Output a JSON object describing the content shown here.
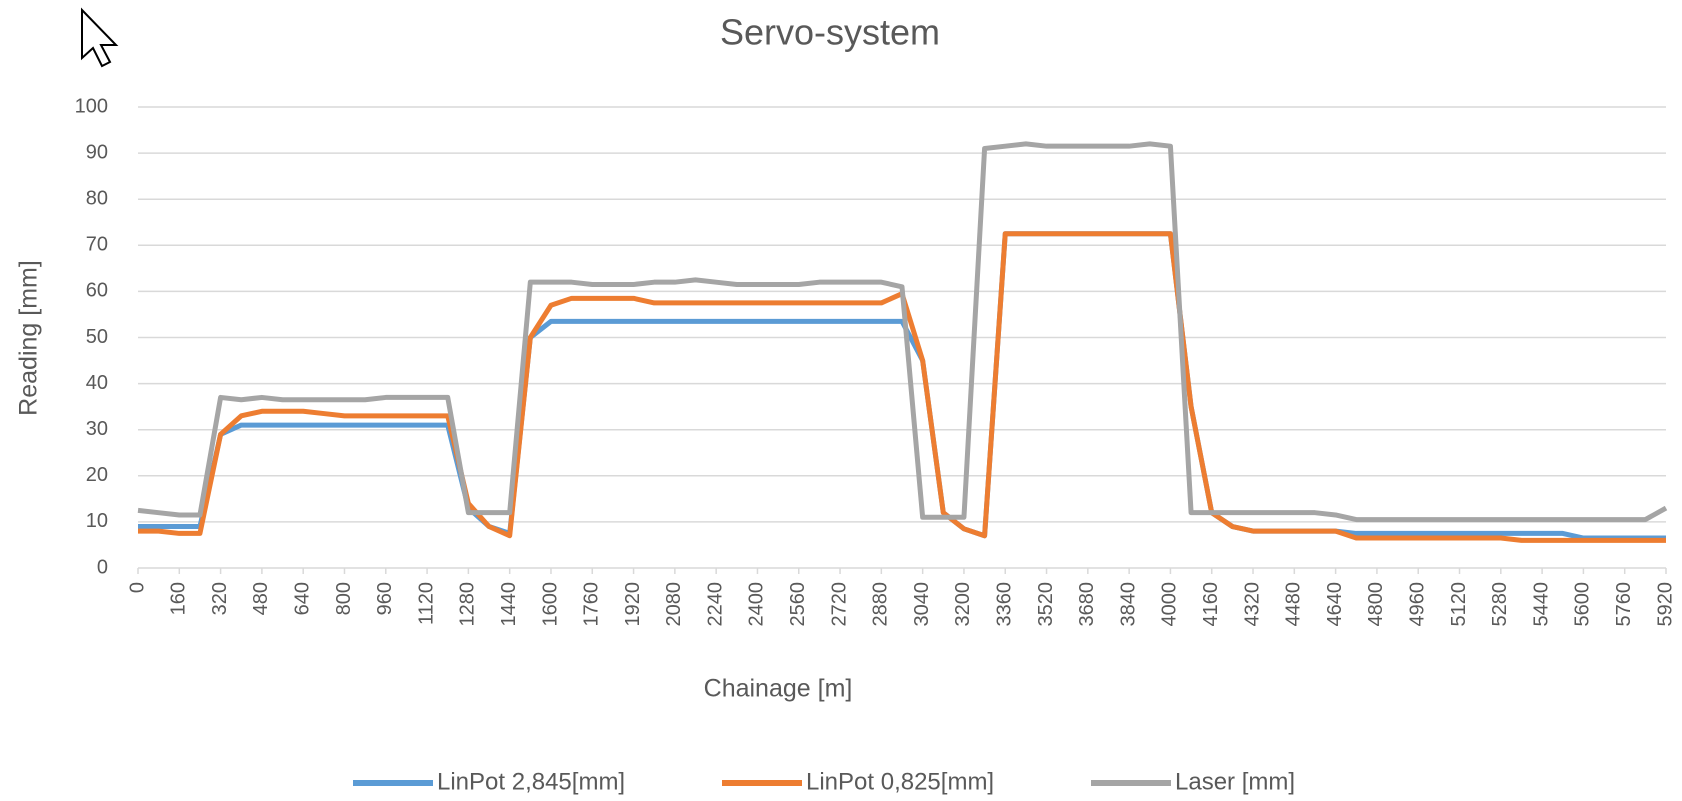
{
  "chart_data": {
    "type": "line",
    "title": "Servo-system",
    "x_label": "Chainage [m]",
    "y_label": "Reading [mm]",
    "x": [
      0,
      80,
      160,
      240,
      320,
      400,
      480,
      560,
      640,
      720,
      800,
      880,
      960,
      1040,
      1120,
      1200,
      1280,
      1360,
      1440,
      1520,
      1600,
      1680,
      1760,
      1840,
      1920,
      2000,
      2080,
      2160,
      2240,
      2320,
      2400,
      2480,
      2560,
      2640,
      2720,
      2800,
      2880,
      2960,
      3040,
      3120,
      3200,
      3280,
      3360,
      3440,
      3520,
      3600,
      3680,
      3760,
      3840,
      3920,
      4000,
      4080,
      4160,
      4240,
      4320,
      4400,
      4480,
      4560,
      4640,
      4720,
      4800,
      4880,
      4960,
      5040,
      5120,
      5200,
      5280,
      5360,
      5440,
      5520,
      5600,
      5680,
      5760,
      5840,
      5920
    ],
    "series": [
      {
        "name": "LinPot 2,845[mm]",
        "color": "#5b9bd5",
        "values": [
          9,
          9,
          9,
          9,
          29,
          31,
          31,
          31,
          31,
          31,
          31,
          31,
          31,
          31,
          31,
          31,
          13,
          9,
          7.5,
          50,
          53.5,
          53.5,
          53.5,
          53.5,
          53.5,
          53.5,
          53.5,
          53.5,
          53.5,
          53.5,
          53.5,
          53.5,
          53.5,
          53.5,
          53.5,
          53.5,
          53.5,
          53.5,
          45,
          12,
          8.5,
          7,
          72.5,
          72.5,
          72.5,
          72.5,
          72.5,
          72.5,
          72.5,
          72.5,
          72.5,
          35,
          12,
          9,
          8,
          8,
          8,
          8,
          8,
          7.5,
          7.5,
          7.5,
          7.5,
          7.5,
          7.5,
          7.5,
          7.5,
          7.5,
          7.5,
          7.5,
          6.5,
          6.5,
          6.5,
          6.5,
          6.5
        ]
      },
      {
        "name": "LinPot 0,825[mm]",
        "color": "#ed7d31",
        "values": [
          8,
          8,
          7.5,
          7.5,
          29,
          33,
          34,
          34,
          34,
          33.5,
          33,
          33,
          33,
          33,
          33,
          33,
          14,
          9,
          7,
          50,
          57,
          58.5,
          58.5,
          58.5,
          58.5,
          57.5,
          57.5,
          57.5,
          57.5,
          57.5,
          57.5,
          57.5,
          57.5,
          57.5,
          57.5,
          57.5,
          57.5,
          59.5,
          45,
          12,
          8.5,
          7,
          72.5,
          72.5,
          72.5,
          72.5,
          72.5,
          72.5,
          72.5,
          72.5,
          72.5,
          35,
          12,
          9,
          8,
          8,
          8,
          8,
          8,
          6.5,
          6.5,
          6.5,
          6.5,
          6.5,
          6.5,
          6.5,
          6.5,
          6,
          6,
          6,
          6,
          6,
          6,
          6,
          6
        ]
      },
      {
        "name": "Laser [mm]",
        "color": "#a5a5a5",
        "values": [
          12.5,
          12,
          11.5,
          11.5,
          37,
          36.5,
          37,
          36.5,
          36.5,
          36.5,
          36.5,
          36.5,
          37,
          37,
          37,
          37,
          12,
          12,
          12,
          62,
          62,
          62,
          61.5,
          61.5,
          61.5,
          62,
          62,
          62.5,
          62,
          61.5,
          61.5,
          61.5,
          61.5,
          62,
          62,
          62,
          62,
          61,
          11,
          11,
          11,
          91,
          91.5,
          92,
          91.5,
          91.5,
          91.5,
          91.5,
          91.5,
          92,
          91.5,
          12,
          12,
          12,
          12,
          12,
          12,
          12,
          11.5,
          10.5,
          10.5,
          10.5,
          10.5,
          10.5,
          10.5,
          10.5,
          10.5,
          10.5,
          10.5,
          10.5,
          10.5,
          10.5,
          10.5,
          10.5,
          13
        ]
      }
    ],
    "xlim": [
      0,
      5920
    ],
    "xticks": [
      0,
      160,
      320,
      480,
      640,
      800,
      960,
      1120,
      1280,
      1440,
      1600,
      1760,
      1920,
      2080,
      2240,
      2400,
      2560,
      2720,
      2880,
      3040,
      3200,
      3360,
      3520,
      3680,
      3840,
      4000,
      4160,
      4320,
      4480,
      4640,
      4800,
      4960,
      5120,
      5280,
      5440,
      5600,
      5760,
      5920
    ],
    "ylim": [
      0,
      100
    ],
    "yticks": [
      0,
      10,
      20,
      30,
      40,
      50,
      60,
      70,
      80,
      90,
      100
    ],
    "grid": true,
    "legend": "bottom"
  }
}
